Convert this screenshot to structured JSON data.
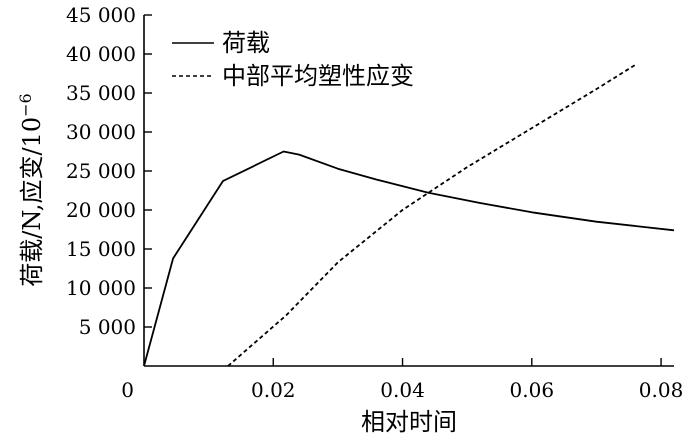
{
  "chart_data": {
    "type": "line",
    "title": "",
    "xlabel": "相对时间",
    "ylabel_main": "荷载/N,应变/10",
    "ylabel_exp": "−6",
    "xlim": [
      0,
      0.082
    ],
    "ylim": [
      0,
      45000
    ],
    "x_ticks": [
      0,
      0.02,
      0.04,
      0.06,
      0.08
    ],
    "x_tick_labels": [
      "0",
      "0.02",
      "0.04",
      "0.06",
      "0.08"
    ],
    "y_ticks": [
      5000,
      10000,
      15000,
      20000,
      25000,
      30000,
      35000,
      40000,
      45000
    ],
    "y_tick_labels": [
      "5 000",
      "10 000",
      "15 000",
      "20 000",
      "25 000",
      "30 000",
      "35 000",
      "40 000",
      "45 000"
    ],
    "grid": false,
    "legend_position": "top-left",
    "series": [
      {
        "name": "荷载",
        "style": "solid",
        "color": "#000000",
        "points": [
          [
            0,
            0
          ],
          [
            0.0045,
            13800
          ],
          [
            0.0122,
            23700
          ],
          [
            0.0216,
            27500
          ],
          [
            0.024,
            27100
          ],
          [
            0.03,
            25300
          ],
          [
            0.036,
            23900
          ],
          [
            0.044,
            22200
          ],
          [
            0.052,
            20900
          ],
          [
            0.06,
            19700
          ],
          [
            0.07,
            18500
          ],
          [
            0.082,
            17400
          ]
        ]
      },
      {
        "name": "中部平均塑性应变",
        "style": "dashed",
        "color": "#000000",
        "points": [
          [
            0.013,
            0
          ],
          [
            0.022,
            6500
          ],
          [
            0.03,
            13300
          ],
          [
            0.04,
            20000
          ],
          [
            0.05,
            25500
          ],
          [
            0.06,
            30500
          ],
          [
            0.07,
            35500
          ],
          [
            0.076,
            38600
          ]
        ]
      }
    ]
  }
}
